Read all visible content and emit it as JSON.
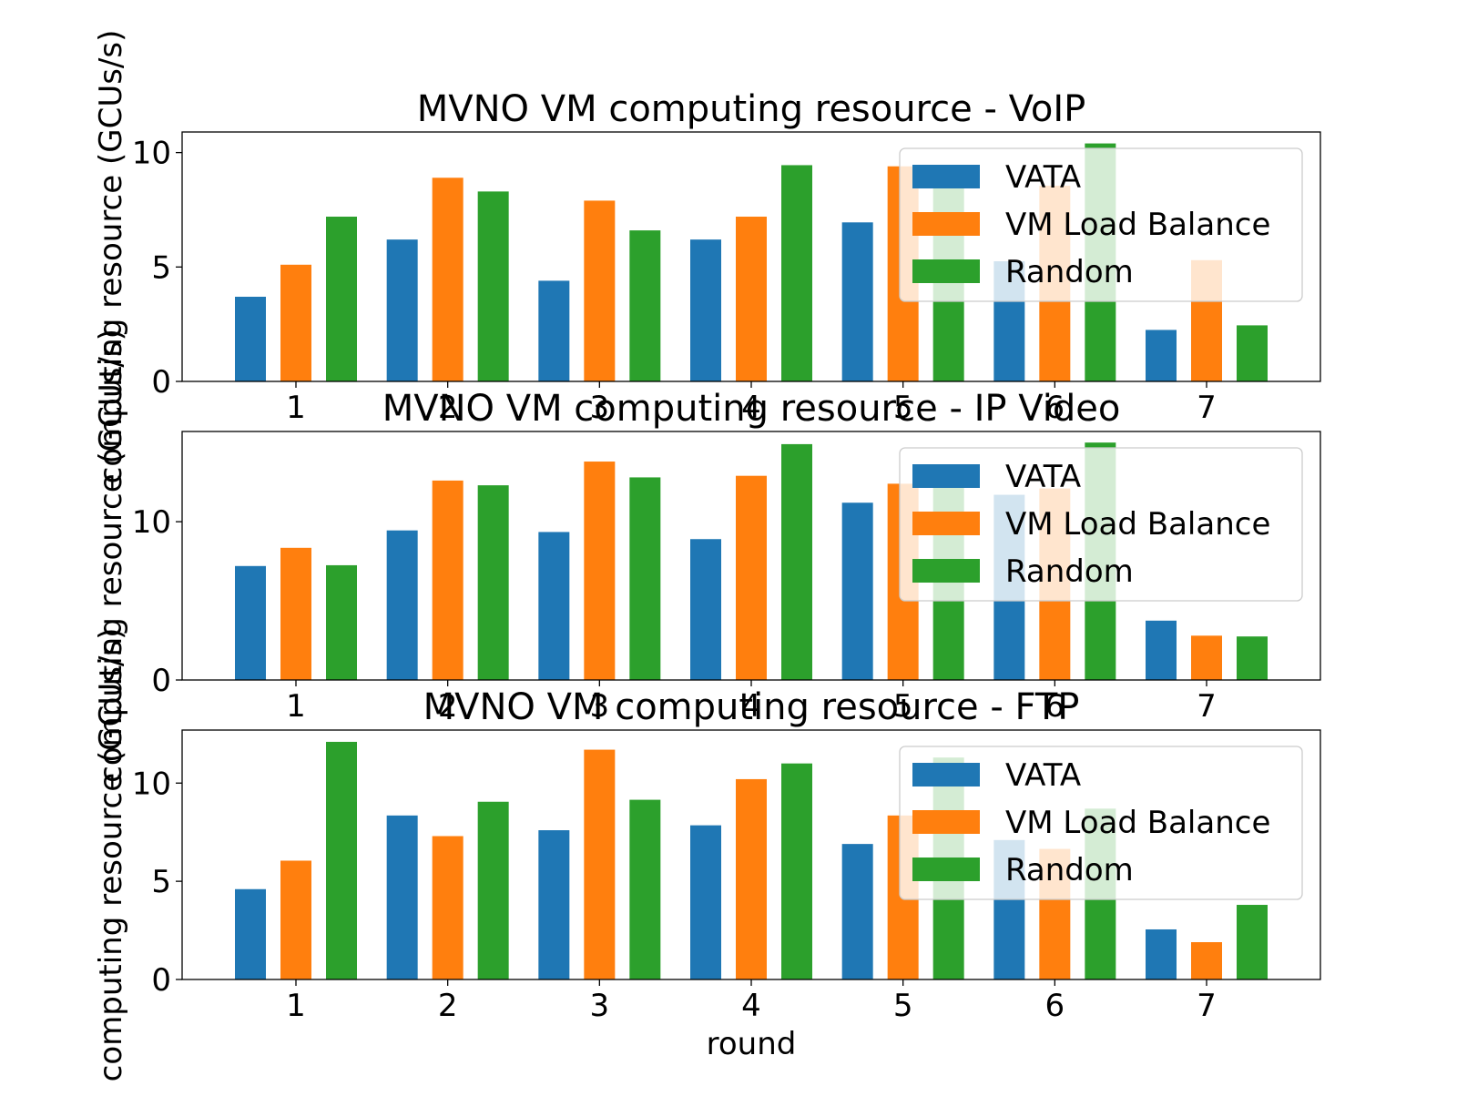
{
  "chart_data": [
    {
      "type": "bar",
      "title": "MVNO VM computing resource - VoIP",
      "xlabel": "",
      "ylabel": "computing resource (GCUs/s)",
      "categories": [
        "1",
        "2",
        "3",
        "4",
        "5",
        "6",
        "7"
      ],
      "yticks": [
        "0",
        "5",
        "10"
      ],
      "ylim": [
        0,
        10.9
      ],
      "legend_position": "upper-right",
      "grid": false,
      "series": [
        {
          "name": "VATA",
          "color": "#1f77b4",
          "values": [
            3.7,
            6.2,
            4.4,
            6.2,
            6.95,
            5.25,
            2.25
          ]
        },
        {
          "name": "VM Load Balance",
          "color": "#ff7f0e",
          "values": [
            5.1,
            8.9,
            7.9,
            7.2,
            9.4,
            8.55,
            5.3
          ]
        },
        {
          "name": "Random",
          "color": "#2ca02c",
          "values": [
            7.2,
            8.3,
            6.6,
            9.45,
            9.1,
            10.4,
            2.45
          ]
        }
      ]
    },
    {
      "type": "bar",
      "title": "MVNO VM computing resource - IP Video",
      "xlabel": "",
      "ylabel": "computing resource (GCUs/s)",
      "categories": [
        "1",
        "2",
        "3",
        "4",
        "5",
        "6",
        "7"
      ],
      "yticks": [
        "0",
        "10"
      ],
      "ylim": [
        0,
        15.7
      ],
      "legend_position": "upper-right",
      "grid": false,
      "series": [
        {
          "name": "VATA",
          "color": "#1f77b4",
          "values": [
            7.2,
            9.45,
            9.35,
            8.9,
            11.2,
            11.7,
            3.75
          ]
        },
        {
          "name": "VM Load Balance",
          "color": "#ff7f0e",
          "values": [
            8.35,
            12.6,
            13.8,
            12.9,
            12.4,
            12.1,
            2.8
          ]
        },
        {
          "name": "Random",
          "color": "#2ca02c",
          "values": [
            7.25,
            12.3,
            12.8,
            14.9,
            13.1,
            15.0,
            2.75
          ]
        }
      ]
    },
    {
      "type": "bar",
      "title": "MVNO VM computing resource - FTP",
      "xlabel": "round",
      "ylabel": "computing resource (GCUs/s)",
      "categories": [
        "1",
        "2",
        "3",
        "4",
        "5",
        "6",
        "7"
      ],
      "yticks": [
        "0",
        "5",
        "10"
      ],
      "ylim": [
        0,
        12.7
      ],
      "legend_position": "upper-right",
      "grid": false,
      "series": [
        {
          "name": "VATA",
          "color": "#1f77b4",
          "values": [
            4.6,
            8.35,
            7.6,
            7.85,
            6.9,
            7.1,
            2.55
          ]
        },
        {
          "name": "VM Load Balance",
          "color": "#ff7f0e",
          "values": [
            6.05,
            7.3,
            11.7,
            10.2,
            8.35,
            6.65,
            1.9
          ]
        },
        {
          "name": "Random",
          "color": "#2ca02c",
          "values": [
            12.1,
            9.05,
            9.15,
            11.0,
            11.3,
            8.7,
            3.8
          ]
        }
      ]
    }
  ]
}
